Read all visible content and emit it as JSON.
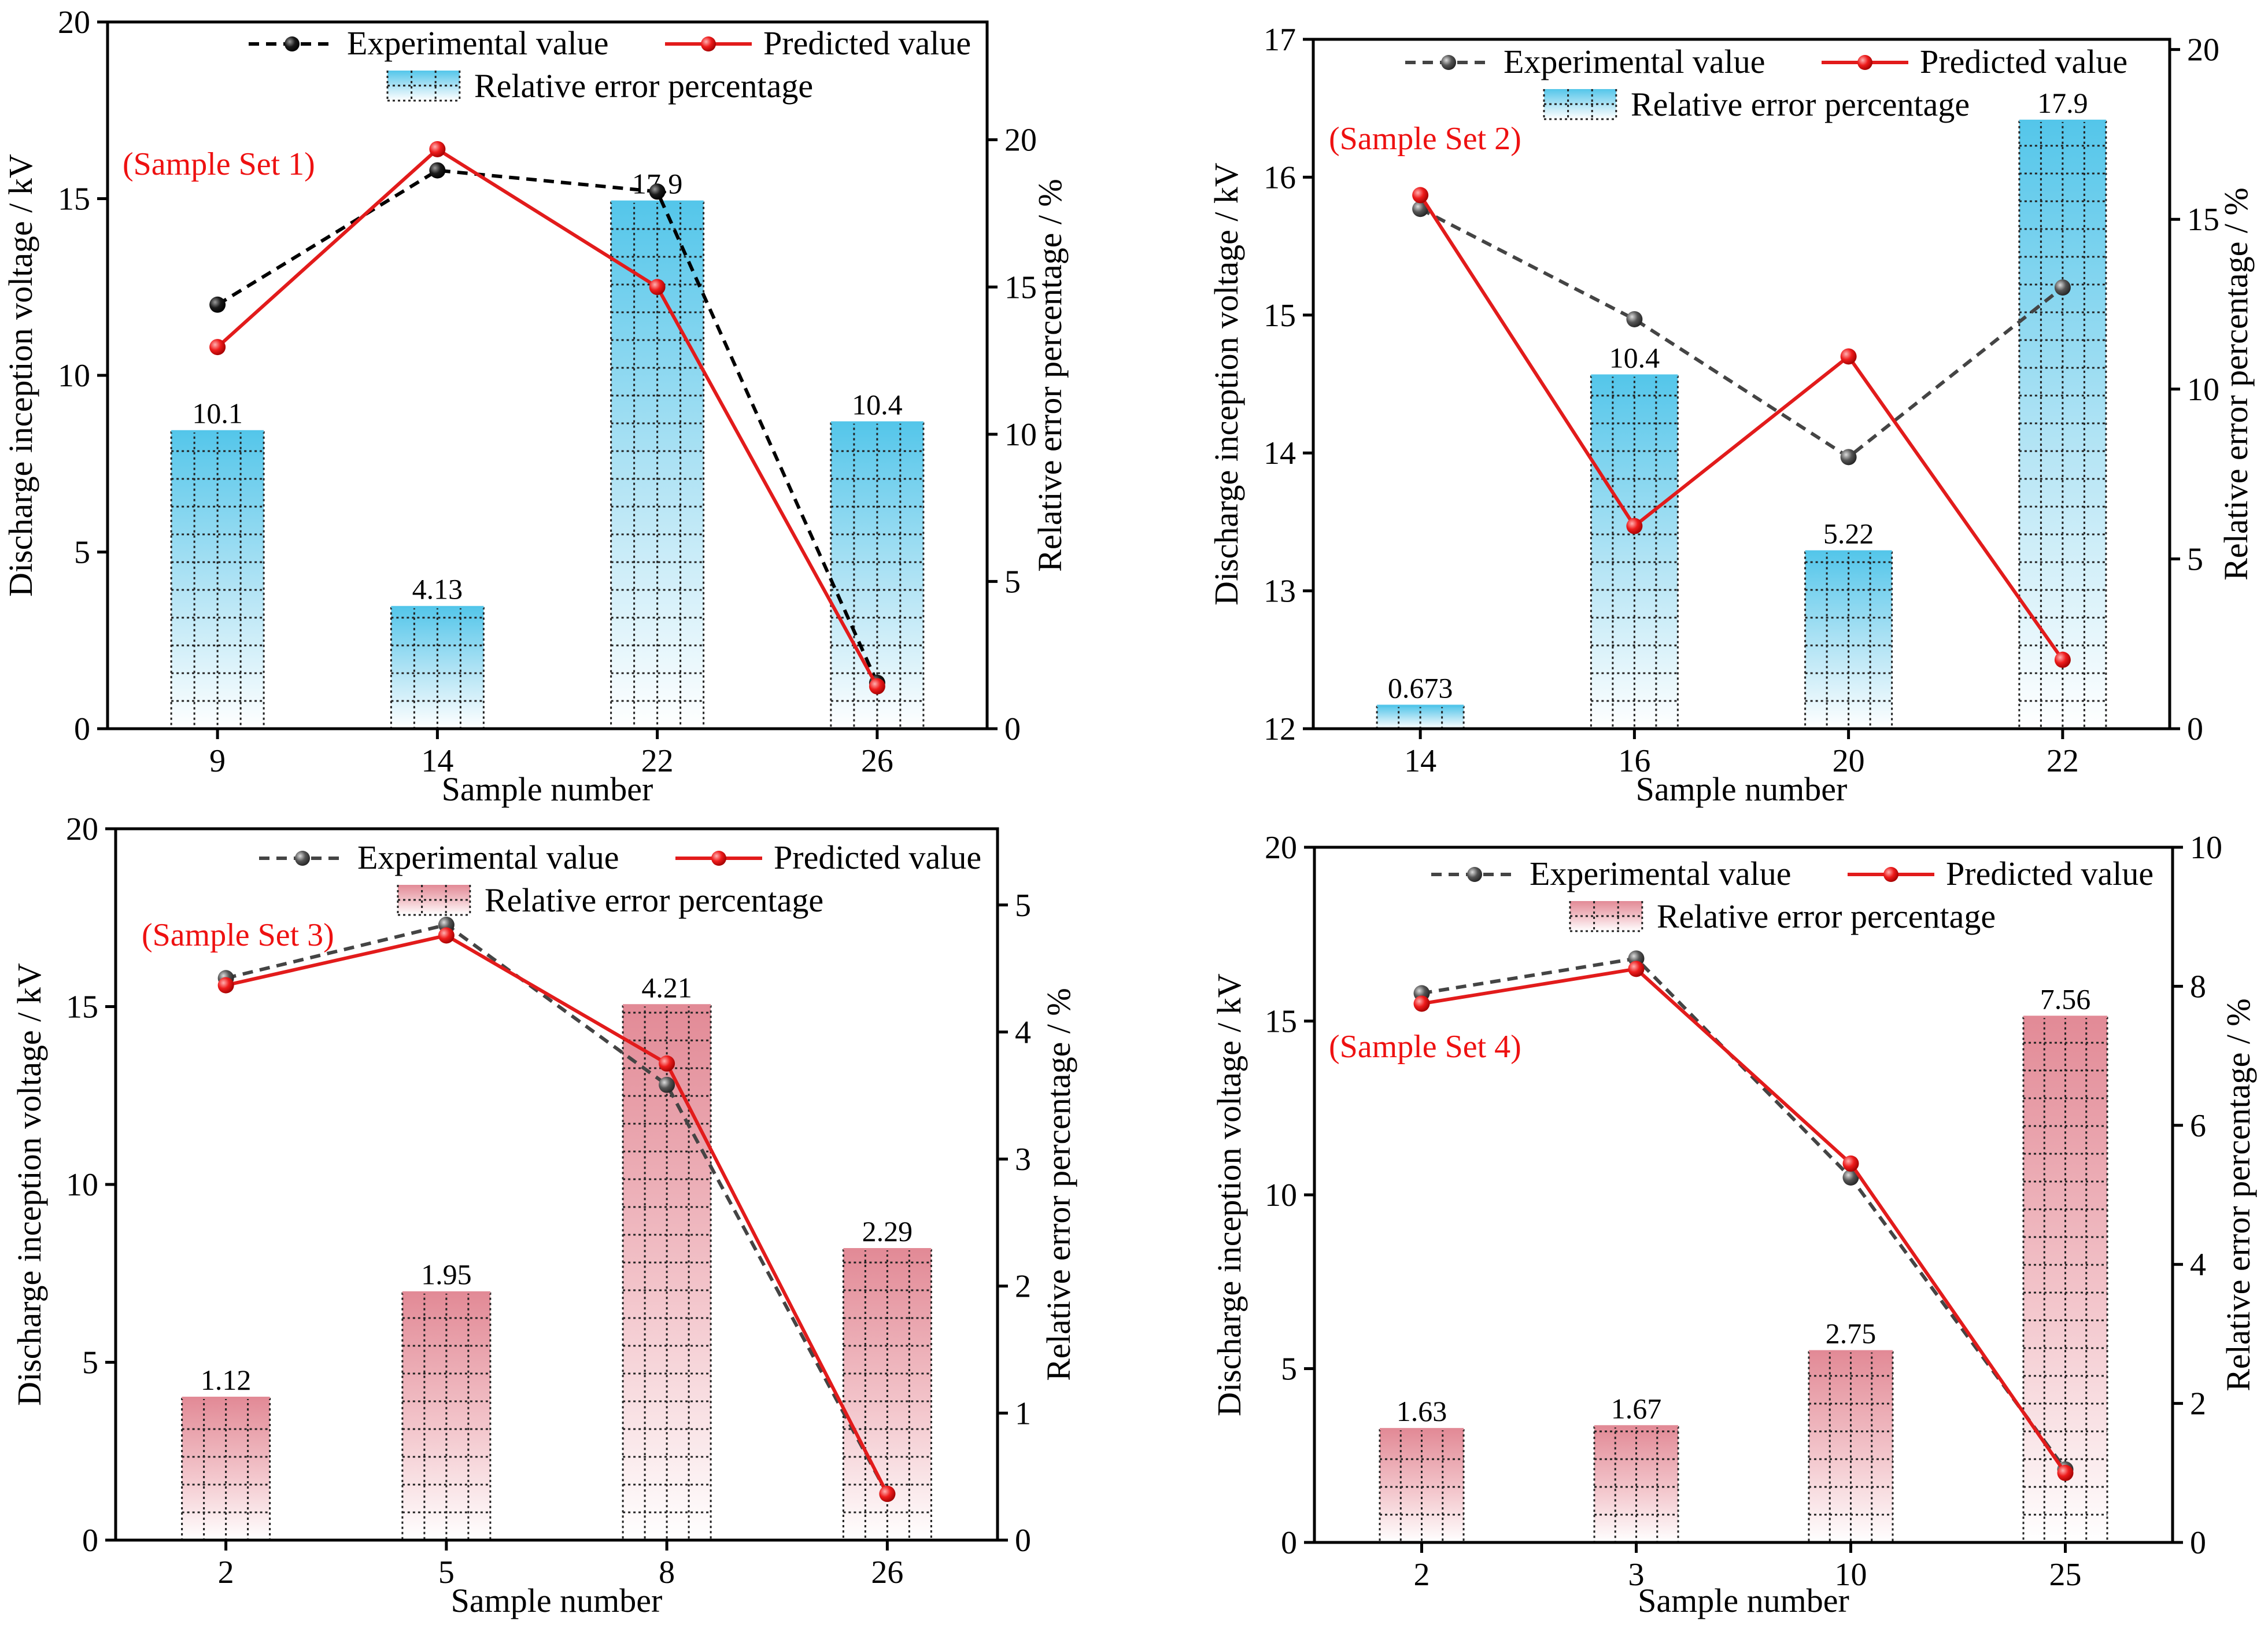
{
  "colors": {
    "experimental_1": "#000000",
    "experimental_dark": "#444444",
    "predicted": "#e21b1b",
    "set_label": "#ee1111",
    "bar_blue_top": "#54c6ea",
    "bar_pink_top": "#e28a96",
    "bar_grid": "#222222"
  },
  "chart_data": [
    {
      "type": "bar+line",
      "panel": "Sample Set 1",
      "set_label": "(Sample Set 1)",
      "xlabel": "Sample number",
      "ylabel": "Discharge inception voltage / kV",
      "y2label": "Relative error percentage / %",
      "categories": [
        "9",
        "14",
        "22",
        "26"
      ],
      "ylim": [
        0,
        20
      ],
      "yticks": [
        0,
        5,
        10,
        15,
        20
      ],
      "y2lim": [
        0,
        24
      ],
      "y2ticks": [
        0,
        5,
        10,
        15,
        20
      ],
      "bar_style": "blue",
      "exp_style": "black",
      "series": [
        {
          "name": "Experimental value",
          "kind": "line",
          "axis": "left",
          "values": [
            12.0,
            15.8,
            15.2,
            1.3
          ]
        },
        {
          "name": "Predicted value",
          "kind": "line",
          "axis": "left",
          "values": [
            10.8,
            16.4,
            12.5,
            1.2
          ]
        },
        {
          "name": "Relative error percentage",
          "kind": "bar",
          "axis": "right",
          "values": [
            10.1,
            4.13,
            17.9,
            10.4
          ],
          "labels": [
            "10.1",
            "4.13",
            "17.9",
            "10.4"
          ]
        }
      ],
      "legend": {
        "experimental": "Experimental value",
        "predicted": "Predicted value",
        "error": "Relative error percentage"
      }
    },
    {
      "type": "bar+line",
      "panel": "Sample Set 2",
      "set_label": "(Sample Set 2)",
      "xlabel": "Sample number",
      "ylabel": "Discharge inception voltage / kV",
      "y2label": "Relative error percentage / %",
      "categories": [
        "14",
        "16",
        "20",
        "22"
      ],
      "ylim": [
        12,
        17
      ],
      "yticks": [
        12,
        13,
        14,
        15,
        16,
        17
      ],
      "y2lim": [
        0,
        20.3
      ],
      "y2ticks": [
        0,
        5,
        10,
        15,
        20
      ],
      "bar_style": "blue",
      "exp_style": "dark",
      "series": [
        {
          "name": "Experimental value",
          "kind": "line",
          "axis": "left",
          "values": [
            15.77,
            14.97,
            13.97,
            15.2
          ]
        },
        {
          "name": "Predicted value",
          "kind": "line",
          "axis": "left",
          "values": [
            15.87,
            13.47,
            14.7,
            12.5
          ]
        },
        {
          "name": "Relative error percentage",
          "kind": "bar",
          "axis": "right",
          "values": [
            0.673,
            10.4,
            5.22,
            17.9
          ],
          "labels": [
            "0.673",
            "10.4",
            "5.22",
            "17.9"
          ]
        }
      ],
      "legend": {
        "experimental": "Experimental value",
        "predicted": "Predicted value",
        "error": "Relative error percentage"
      }
    },
    {
      "type": "bar+line",
      "panel": "Sample Set 3",
      "set_label": "(Sample Set 3)",
      "xlabel": "Sample number",
      "ylabel": "Discharge inception voltage / kV",
      "y2label": "Relative error percentage / %",
      "categories": [
        "2",
        "5",
        "8",
        "26"
      ],
      "ylim": [
        0,
        20
      ],
      "yticks": [
        0,
        5,
        10,
        15,
        20
      ],
      "y2lim": [
        0,
        5.6
      ],
      "y2ticks": [
        0,
        1,
        2,
        3,
        4,
        5
      ],
      "bar_style": "pink",
      "exp_style": "dark",
      "series": [
        {
          "name": "Experimental value",
          "kind": "line",
          "axis": "left",
          "values": [
            15.8,
            17.3,
            12.8,
            1.3
          ]
        },
        {
          "name": "Predicted value",
          "kind": "line",
          "axis": "left",
          "values": [
            15.6,
            17.0,
            13.4,
            1.3
          ]
        },
        {
          "name": "Relative error percentage",
          "kind": "bar",
          "axis": "right",
          "values": [
            1.12,
            1.95,
            4.21,
            2.29
          ],
          "labels": [
            "1.12",
            "1.95",
            "4.21",
            "2.29"
          ]
        }
      ],
      "legend": {
        "experimental": "Experimental value",
        "predicted": "Predicted value",
        "error": "Relative error percentage"
      }
    },
    {
      "type": "bar+line",
      "panel": "Sample Set 4",
      "set_label": "(Sample Set 4)",
      "xlabel": "Sample number",
      "ylabel": "Discharge inception voltage / kV",
      "y2label": "Relative error percentage / %",
      "categories": [
        "2",
        "3",
        "10",
        "25"
      ],
      "ylim": [
        0,
        20
      ],
      "yticks": [
        0,
        5,
        10,
        15,
        20
      ],
      "y2lim": [
        0,
        10
      ],
      "y2ticks": [
        0,
        2,
        4,
        6,
        8,
        10
      ],
      "bar_style": "pink",
      "exp_style": "dark",
      "series": [
        {
          "name": "Experimental value",
          "kind": "line",
          "axis": "left",
          "values": [
            15.8,
            16.8,
            10.5,
            2.1
          ]
        },
        {
          "name": "Predicted value",
          "kind": "line",
          "axis": "left",
          "values": [
            15.5,
            16.5,
            10.9,
            2.0
          ]
        },
        {
          "name": "Relative error percentage",
          "kind": "bar",
          "axis": "right",
          "values": [
            1.63,
            1.67,
            2.75,
            7.56
          ],
          "labels": [
            "1.63",
            "1.67",
            "2.75",
            "7.56"
          ]
        }
      ],
      "legend": {
        "experimental": "Experimental value",
        "predicted": "Predicted value",
        "error": "Relative error percentage"
      }
    }
  ]
}
